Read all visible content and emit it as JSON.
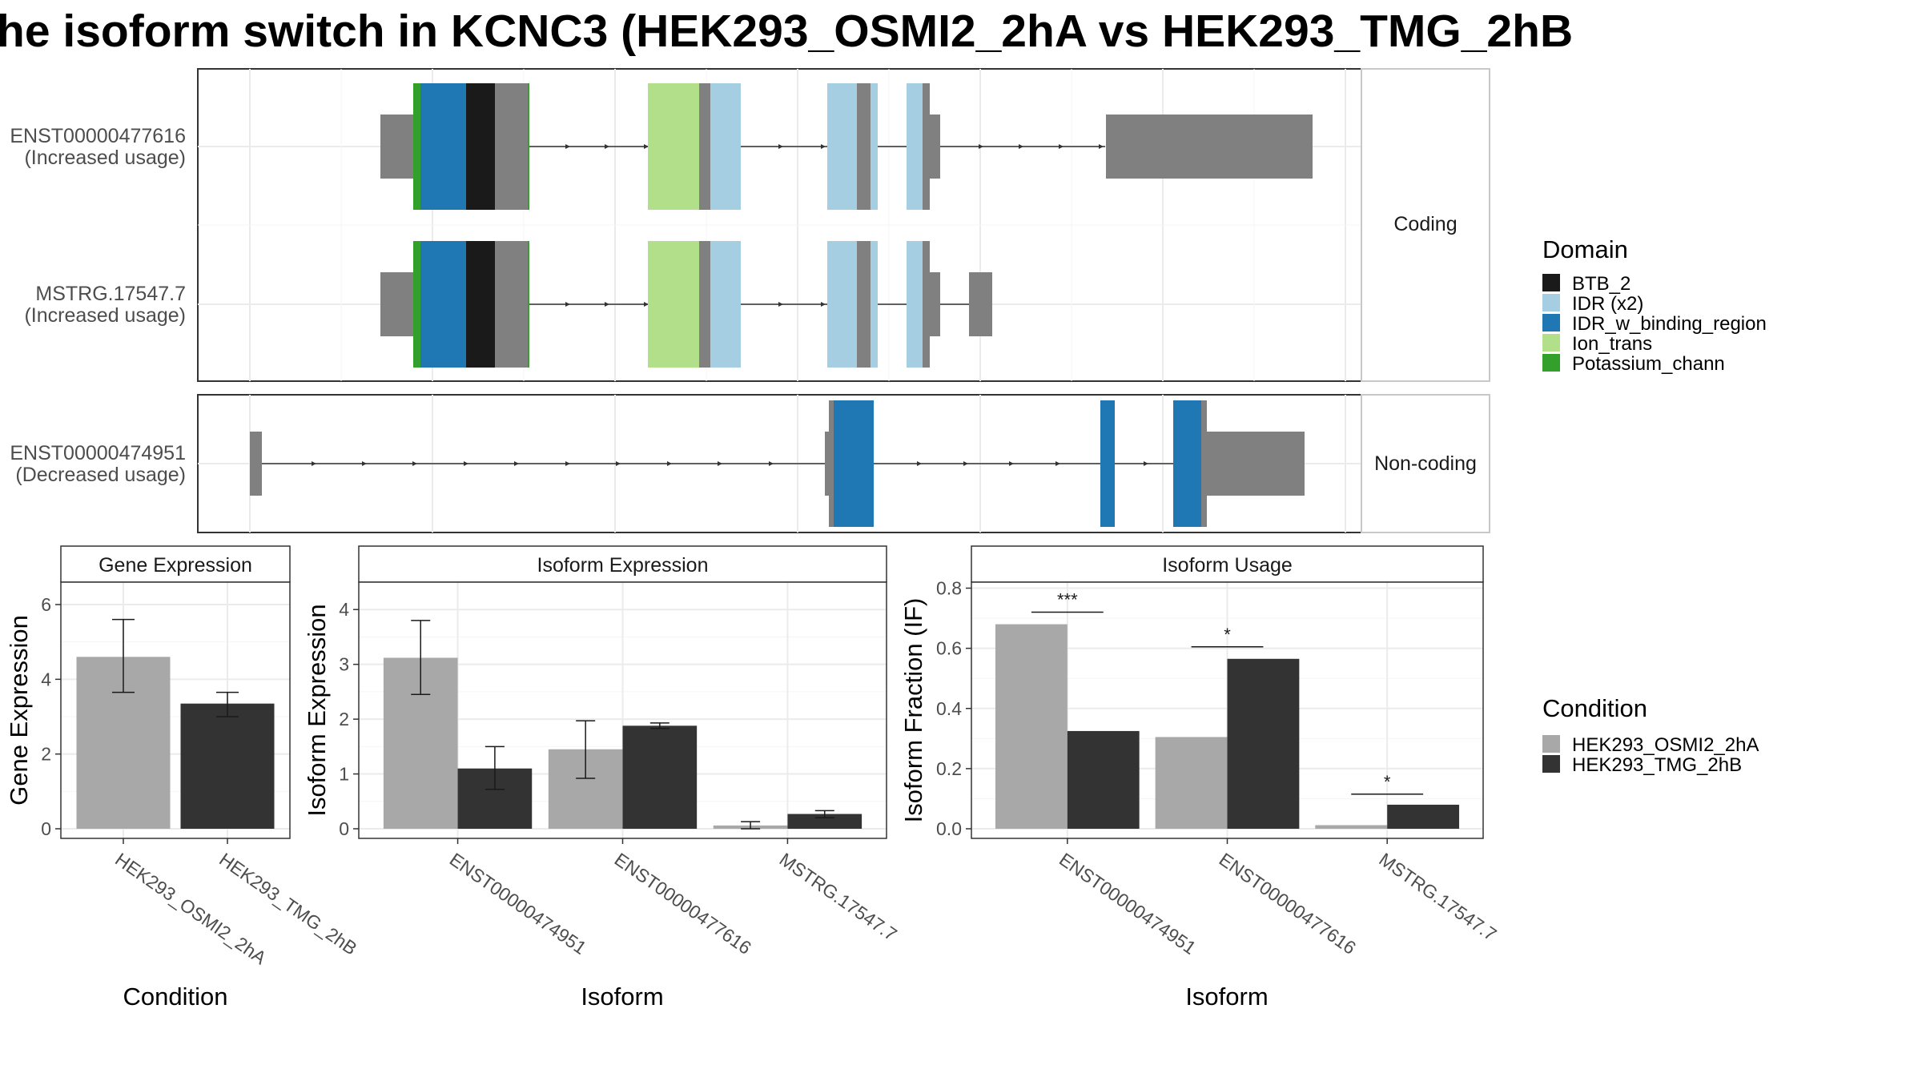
{
  "figure": {
    "title": "he isoform switch in KCNC3 (HEK293_OSMI2_2hA vs HEK293_TMG_2hB"
  },
  "structure": {
    "facets": [
      "Coding",
      "Non-coding"
    ],
    "transcripts": [
      {
        "id": "ENST00000477616",
        "usage": "(Increased usage)",
        "facet": 0
      },
      {
        "id": "MSTRG.17547.7",
        "usage": "(Increased usage)",
        "facet": 0
      },
      {
        "id": "ENST00000474951",
        "usage": "(Decreased usage)",
        "facet": 1
      }
    ],
    "domain_legend": {
      "title": "Domain",
      "items": [
        {
          "label": "BTB_2",
          "color": "#1a1a1a"
        },
        {
          "label": "IDR (x2)",
          "color": "#a6cee3"
        },
        {
          "label": "IDR_w_binding_region",
          "color": "#1f78b4"
        },
        {
          "label": "Ion_trans",
          "color": "#b2df8a"
        },
        {
          "label": "Potassium_chann",
          "color": "#33a02c"
        }
      ]
    }
  },
  "condition_legend": {
    "title": "Condition",
    "items": [
      {
        "label": "HEK293_OSMI2_2hA",
        "color": "#a8a8a8"
      },
      {
        "label": "HEK293_TMG_2hB",
        "color": "#333333"
      }
    ]
  },
  "chart_data": [
    {
      "type": "bar",
      "title": "Gene Expression",
      "xlabel": "Condition",
      "ylabel": "Gene Expression",
      "ylim": [
        0,
        6.6
      ],
      "yticks": [
        0,
        2,
        4,
        6
      ],
      "categories": [
        "HEK293_OSMI2_2hA",
        "HEK293_TMG_2hB"
      ],
      "values": [
        4.6,
        3.35
      ],
      "errors": [
        [
          3.65,
          5.6
        ],
        [
          3.0,
          3.65
        ]
      ],
      "colors": [
        "#a8a8a8",
        "#333333"
      ]
    },
    {
      "type": "bar",
      "title": "Isoform Expression",
      "xlabel": "Isoform",
      "ylabel": "Isoform Expression",
      "ylim": [
        0,
        4.5
      ],
      "yticks": [
        0,
        1,
        2,
        3,
        4
      ],
      "categories": [
        "ENST00000474951",
        "ENST00000477616",
        "MSTRG.17547.7"
      ],
      "series": [
        {
          "name": "HEK293_OSMI2_2hA",
          "values": [
            3.12,
            1.45,
            0.06
          ],
          "errors": [
            [
              2.45,
              3.8
            ],
            [
              0.92,
              1.97
            ],
            [
              0.0,
              0.13
            ]
          ]
        },
        {
          "name": "HEK293_TMG_2hB",
          "values": [
            1.1,
            1.88,
            0.27
          ],
          "errors": [
            [
              0.72,
              1.5
            ],
            [
              1.83,
              1.93
            ],
            [
              0.2,
              0.33
            ]
          ]
        }
      ]
    },
    {
      "type": "bar",
      "title": "Isoform Usage",
      "xlabel": "Isoform",
      "ylabel": "Isoform Fraction (IF)",
      "ylim": [
        0,
        0.82
      ],
      "yticks": [
        0.0,
        0.2,
        0.4,
        0.6,
        0.8
      ],
      "ytick_labels": [
        "0.0",
        "0.2",
        "0.4",
        "0.6",
        "0.8"
      ],
      "categories": [
        "ENST00000474951",
        "ENST00000477616",
        "MSTRG.17547.7"
      ],
      "series": [
        {
          "name": "HEK293_OSMI2_2hA",
          "values": [
            0.68,
            0.305,
            0.012
          ]
        },
        {
          "name": "HEK293_TMG_2hB",
          "values": [
            0.325,
            0.565,
            0.08
          ]
        }
      ],
      "significance": [
        {
          "category": 0,
          "label": "***",
          "y": 0.72
        },
        {
          "category": 1,
          "label": "*",
          "y": 0.605
        },
        {
          "category": 2,
          "label": "*",
          "y": 0.115
        }
      ]
    }
  ]
}
